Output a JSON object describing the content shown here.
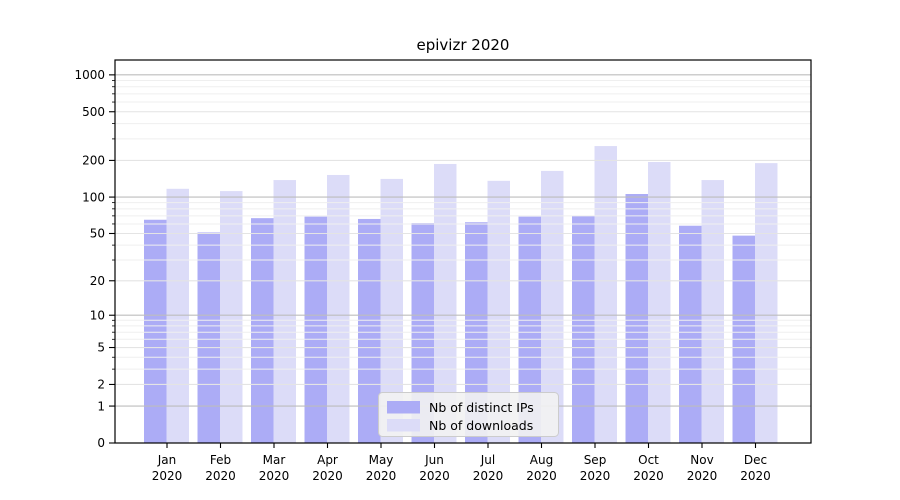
{
  "chart_data": {
    "type": "bar",
    "title": "epivizr 2020",
    "categories": [
      "Jan 2020",
      "Feb 2020",
      "Mar 2020",
      "Apr 2020",
      "May 2020",
      "Jun 2020",
      "Jul 2020",
      "Aug 2020",
      "Sep 2020",
      "Oct 2020",
      "Nov 2020",
      "Dec 2020"
    ],
    "series": [
      {
        "name": "Nb of distinct IPs",
        "color": "#acacf6",
        "values": [
          65,
          51,
          67,
          69,
          66,
          61,
          62,
          69,
          70,
          106,
          58,
          48
        ]
      },
      {
        "name": "Nb of downloads",
        "color": "#dcdcf8",
        "values": [
          117,
          112,
          138,
          152,
          141,
          187,
          136,
          164,
          262,
          194,
          138,
          190
        ]
      }
    ],
    "xlabel": "",
    "ylabel": "",
    "y_scale": "log1p",
    "y_ticks": [
      0,
      1,
      2,
      5,
      10,
      20,
      50,
      100,
      200,
      500,
      1000
    ],
    "y_minor_multipliers": [
      3,
      4,
      6,
      7,
      8,
      9
    ],
    "ylim": [
      0,
      1322
    ],
    "grid": "horizontal",
    "legend_position": "inside-bottom-center",
    "colors": {
      "axis": "#000000",
      "grid_decade": "#bdbdbd",
      "grid_major": "#e4e4e4",
      "grid_minor": "#efefef",
      "legend_bg": "#f2f2f2",
      "legend_border": "#cccccc",
      "background": "#ffffff"
    }
  }
}
